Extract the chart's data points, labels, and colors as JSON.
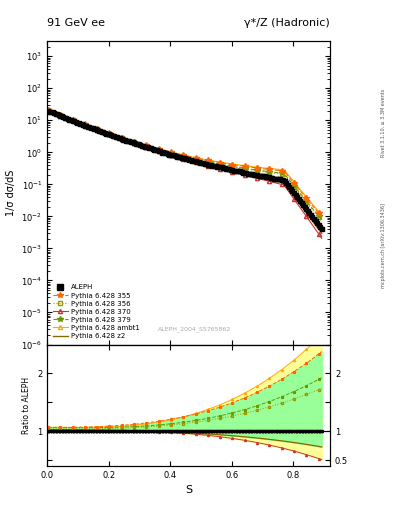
{
  "title_left": "91 GeV ee",
  "title_right": "γ*/Z (Hadronic)",
  "ylabel_main": "1/σ dσ/dS",
  "ylabel_ratio": "Ratio to ALEPH",
  "xlabel": "S",
  "right_label_top": "Rivet 3.1.10, ≥ 3.3M events",
  "right_label_bot": "mcplots.cern.ch [arXiv:1306.3436]",
  "watermark": "ALEPH_2004_S5765862",
  "ylim_main": [
    1e-06,
    3000
  ],
  "ylim_ratio": [
    0.4,
    2.5
  ],
  "xlim": [
    0.0,
    0.92
  ],
  "aleph_color": "#000000",
  "line_colors": {
    "355": "#ff6600",
    "356": "#999900",
    "370": "#cc3333",
    "379": "#669900",
    "ambt1": "#ffaa00",
    "z2": "#886600"
  },
  "band_color_yellow": "#ffff99",
  "band_color_green": "#99ff99",
  "bg_color": "#ffffff"
}
